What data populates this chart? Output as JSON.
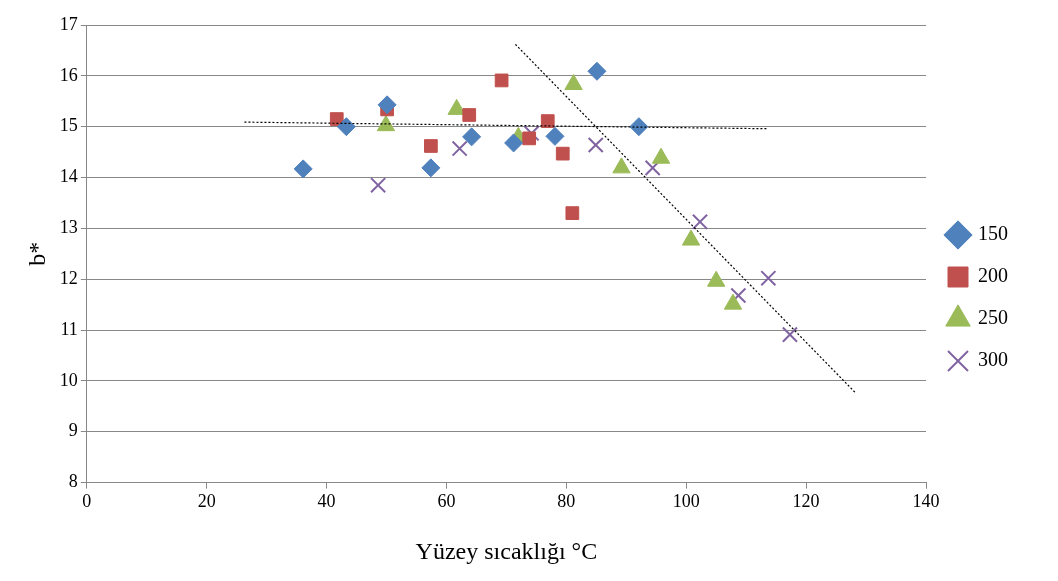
{
  "chart_data": {
    "type": "scatter",
    "xlabel": "Yüzey sıcaklığı °C",
    "ylabel": "b*",
    "xlim": [
      0,
      140
    ],
    "xticks": [
      0,
      20,
      40,
      60,
      80,
      100,
      120,
      140
    ],
    "ylim": [
      8,
      17
    ],
    "yticks": [
      8,
      9,
      10,
      11,
      12,
      13,
      14,
      15,
      16,
      17
    ],
    "grid": "y",
    "legend": "right",
    "series": [
      {
        "name": "150",
        "color": "#4f81bd",
        "marker": "diamond",
        "x": [
          36.1,
          43.3,
          50.1,
          57.4,
          64.2,
          71.2,
          78.1,
          85.1,
          92.1
        ],
        "values": [
          14.17,
          15.0,
          15.43,
          14.19,
          14.8,
          14.68,
          14.81,
          16.09,
          15.0
        ]
      },
      {
        "name": "200",
        "color": "#c0504d",
        "marker": "square",
        "x": [
          41.7,
          50.1,
          57.4,
          63.8,
          69.2,
          73.8,
          76.9,
          79.4,
          81.0
        ],
        "values": [
          15.15,
          15.34,
          14.62,
          15.23,
          15.91,
          14.77,
          15.11,
          14.47,
          13.3
        ]
      },
      {
        "name": "250",
        "color": "#9bbb59",
        "marker": "triangle",
        "x": [
          49.9,
          61.7,
          72.0,
          81.2,
          89.2,
          95.8,
          100.8,
          105.0,
          107.8
        ],
        "values": [
          15.02,
          15.34,
          14.79,
          15.83,
          14.19,
          14.38,
          12.77,
          11.96,
          11.51
        ]
      },
      {
        "name": "300",
        "color": "#8064a2",
        "marker": "cross",
        "x": [
          48.6,
          62.2,
          74.2,
          84.9,
          94.4,
          102.3,
          108.7,
          113.7,
          117.3
        ],
        "values": [
          13.85,
          14.57,
          14.87,
          14.64,
          14.19,
          13.13,
          11.68,
          12.02,
          10.91
        ]
      },
      {
        "type": "line",
        "color": "#000000",
        "marker": "none",
        "line_style": "dotted",
        "x": [
          26.3,
          113.4
        ],
        "values": [
          15.09,
          14.96
        ]
      },
      {
        "type": "line",
        "color": "#000000",
        "marker": "none",
        "line_style": "dotted",
        "x": [
          71.5,
          128.2
        ],
        "values": [
          16.62,
          9.77
        ]
      }
    ]
  }
}
